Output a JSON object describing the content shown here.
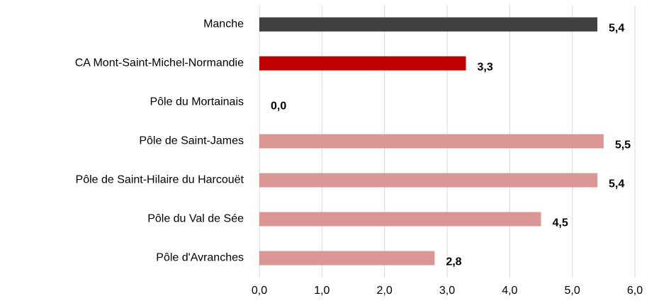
{
  "chart_data": {
    "type": "barh",
    "categories": [
      "Manche",
      "CA Mont-Saint-Michel-Normandie",
      "Pôle du Mortainais",
      "Pôle de Saint-James",
      "Pôle de Saint-Hilaire du Harcouët",
      "Pôle du Val de Sée",
      "Pôle d'Avranches"
    ],
    "values": [
      5.4,
      3.3,
      0.0,
      5.5,
      5.4,
      4.5,
      2.8
    ],
    "value_labels": [
      "5,4",
      "3,3",
      "0,0",
      "5,5",
      "5,4",
      "4,5",
      "2,8"
    ],
    "colors": [
      "#404040",
      "#c00000",
      "#da9694",
      "#da9694",
      "#da9694",
      "#da9694",
      "#da9694"
    ],
    "xlim": [
      0,
      6
    ],
    "xticks": [
      {
        "value": 0,
        "label": "0,0"
      },
      {
        "value": 1,
        "label": "1,0"
      },
      {
        "value": 2,
        "label": "2,0"
      },
      {
        "value": 3,
        "label": "3,0"
      },
      {
        "value": 4,
        "label": "4,0"
      },
      {
        "value": 5,
        "label": "5,0"
      },
      {
        "value": 6,
        "label": "6,0"
      }
    ],
    "grid": true
  }
}
